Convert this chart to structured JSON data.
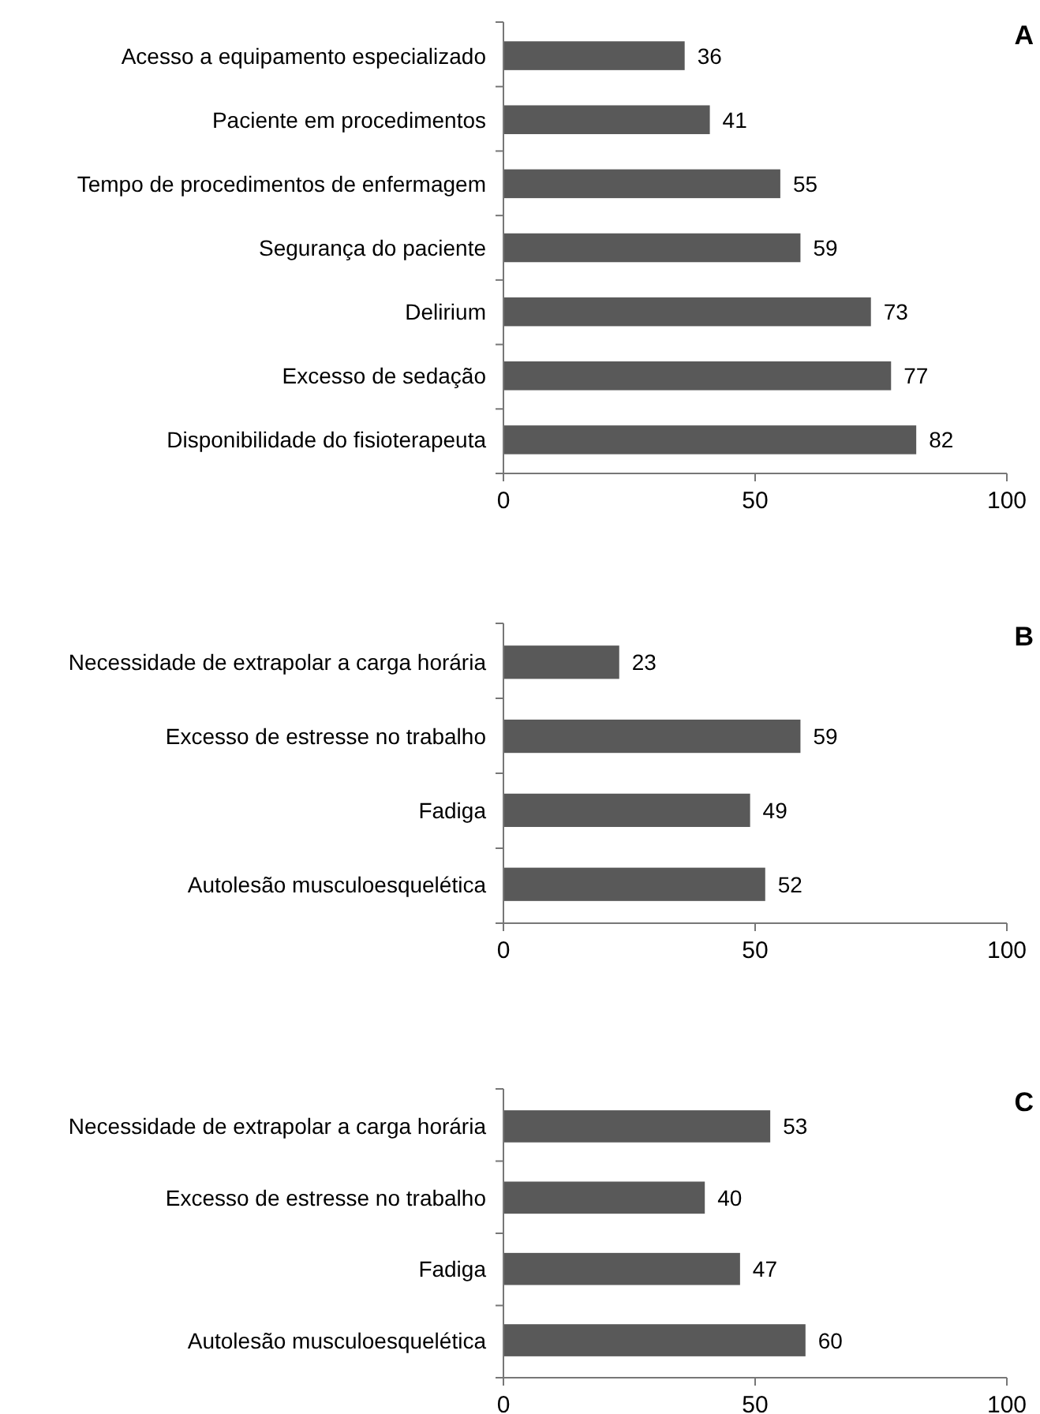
{
  "chart_data": [
    {
      "type": "bar",
      "title": "A",
      "orientation": "horizontal",
      "categories": [
        "Acesso a equipamento especializado",
        "Paciente em procedimentos",
        "Tempo de procedimentos de enfermagem",
        "Segurança do paciente",
        "Delirium",
        "Excesso de sedação",
        "Disponibilidade do fisioterapeuta"
      ],
      "values": [
        36,
        41,
        55,
        59,
        73,
        77,
        82
      ],
      "color": "#595959",
      "xlim": [
        0,
        100
      ],
      "xticks": [
        0,
        50,
        100
      ],
      "data_labels": true
    },
    {
      "type": "bar",
      "title": "B",
      "orientation": "horizontal",
      "categories": [
        "Necessidade de extrapolar a carga horária",
        "Excesso de estresse no trabalho",
        "Fadiga",
        "Autolesão musculoesquelética"
      ],
      "values": [
        23,
        59,
        49,
        52
      ],
      "color": "#595959",
      "xlim": [
        0,
        100
      ],
      "xticks": [
        0,
        50,
        100
      ],
      "data_labels": true
    },
    {
      "type": "bar",
      "title": "C",
      "orientation": "horizontal",
      "categories": [
        "Necessidade de extrapolar a carga horária",
        "Excesso de estresse no trabalho",
        "Fadiga",
        "Autolesão musculoesquelética"
      ],
      "values": [
        53,
        40,
        47,
        60
      ],
      "color": "#595959",
      "xlim": [
        0,
        100
      ],
      "xticks": [
        0,
        50,
        100
      ],
      "data_labels": true
    }
  ]
}
